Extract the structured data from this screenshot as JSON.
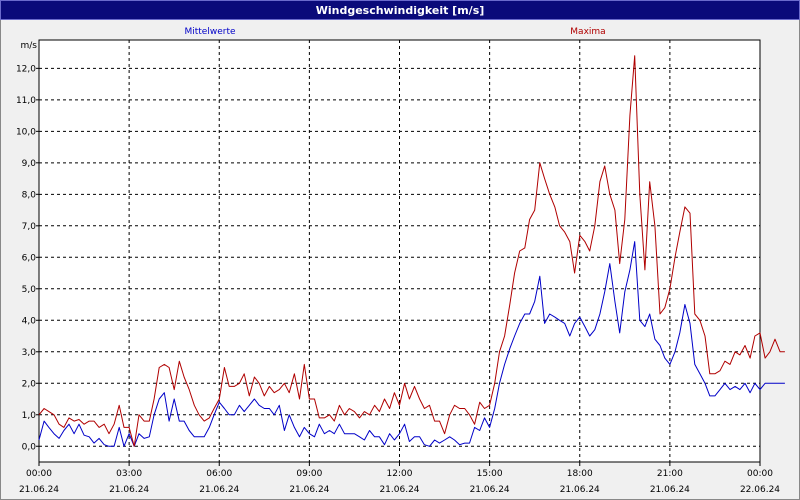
{
  "window_title": "Windgeschwindigkeit [m/s]",
  "colors": {
    "mittel": "#0000c8",
    "maxima": "#b00000",
    "grid": "#000000",
    "background": "#ffffff"
  },
  "chart_data": {
    "type": "line",
    "title": "Windgeschwindigkeit [m/s]",
    "ylabel": "m/s",
    "ylim": [
      -0.5,
      12.9
    ],
    "xlim_hours": [
      0,
      24
    ],
    "y_ticks": [
      "0,0",
      "1,0",
      "2,0",
      "3,0",
      "4,0",
      "5,0",
      "6,0",
      "7,0",
      "8,0",
      "9,0",
      "10,0",
      "11,0",
      "12,0"
    ],
    "x_ticks": [
      {
        "time": "00:00",
        "date": "21.06.24"
      },
      {
        "time": "03:00",
        "date": "21.06.24"
      },
      {
        "time": "06:00",
        "date": "21.06.24"
      },
      {
        "time": "09:00",
        "date": "21.06.24"
      },
      {
        "time": "12:00",
        "date": "21.06.24"
      },
      {
        "time": "15:00",
        "date": "21.06.24"
      },
      {
        "time": "18:00",
        "date": "21.06.24"
      },
      {
        "time": "21:00",
        "date": "21.06.24"
      },
      {
        "time": "00:00",
        "date": "22.06.24"
      }
    ],
    "series": [
      {
        "name": "Mittelwerte",
        "color": "#0000c8",
        "points": [
          [
            0.0,
            0.2
          ],
          [
            0.17,
            0.8
          ],
          [
            0.33,
            0.6
          ],
          [
            0.5,
            0.4
          ],
          [
            0.67,
            0.25
          ],
          [
            0.83,
            0.5
          ],
          [
            1.0,
            0.7
          ],
          [
            1.17,
            0.4
          ],
          [
            1.33,
            0.7
          ],
          [
            1.5,
            0.35
          ],
          [
            1.67,
            0.3
          ],
          [
            1.83,
            0.1
          ],
          [
            2.0,
            0.25
          ],
          [
            2.17,
            0.05
          ],
          [
            2.33,
            0.0
          ],
          [
            2.5,
            0.0
          ],
          [
            2.67,
            0.6
          ],
          [
            2.83,
            0.0
          ],
          [
            3.0,
            0.4
          ],
          [
            3.17,
            0.0
          ],
          [
            3.33,
            0.4
          ],
          [
            3.5,
            0.25
          ],
          [
            3.67,
            0.3
          ],
          [
            3.83,
            1.0
          ],
          [
            4.0,
            1.5
          ],
          [
            4.17,
            1.7
          ],
          [
            4.33,
            0.8
          ],
          [
            4.5,
            1.5
          ],
          [
            4.67,
            0.8
          ],
          [
            4.83,
            0.8
          ],
          [
            5.0,
            0.5
          ],
          [
            5.17,
            0.3
          ],
          [
            5.33,
            0.3
          ],
          [
            5.5,
            0.3
          ],
          [
            5.67,
            0.6
          ],
          [
            5.83,
            1.0
          ],
          [
            6.0,
            1.4
          ],
          [
            6.17,
            1.2
          ],
          [
            6.33,
            1.0
          ],
          [
            6.5,
            1.0
          ],
          [
            6.67,
            1.3
          ],
          [
            6.83,
            1.1
          ],
          [
            7.0,
            1.3
          ],
          [
            7.17,
            1.5
          ],
          [
            7.33,
            1.3
          ],
          [
            7.5,
            1.2
          ],
          [
            7.67,
            1.2
          ],
          [
            7.83,
            1.0
          ],
          [
            8.0,
            1.3
          ],
          [
            8.17,
            0.5
          ],
          [
            8.33,
            1.0
          ],
          [
            8.5,
            0.6
          ],
          [
            8.67,
            0.3
          ],
          [
            8.83,
            0.6
          ],
          [
            9.0,
            0.4
          ],
          [
            9.17,
            0.3
          ],
          [
            9.33,
            0.7
          ],
          [
            9.5,
            0.4
          ],
          [
            9.67,
            0.5
          ],
          [
            9.83,
            0.4
          ],
          [
            10.0,
            0.7
          ],
          [
            10.17,
            0.4
          ],
          [
            10.33,
            0.4
          ],
          [
            10.5,
            0.4
          ],
          [
            10.67,
            0.3
          ],
          [
            10.83,
            0.2
          ],
          [
            11.0,
            0.5
          ],
          [
            11.17,
            0.3
          ],
          [
            11.33,
            0.3
          ],
          [
            11.5,
            0.05
          ],
          [
            11.67,
            0.4
          ],
          [
            11.83,
            0.2
          ],
          [
            12.0,
            0.4
          ],
          [
            12.17,
            0.7
          ],
          [
            12.33,
            0.15
          ],
          [
            12.5,
            0.3
          ],
          [
            12.67,
            0.3
          ],
          [
            12.83,
            0.05
          ],
          [
            13.0,
            0.0
          ],
          [
            13.17,
            0.2
          ],
          [
            13.33,
            0.1
          ],
          [
            13.5,
            0.2
          ],
          [
            13.67,
            0.3
          ],
          [
            13.83,
            0.2
          ],
          [
            14.0,
            0.05
          ],
          [
            14.17,
            0.1
          ],
          [
            14.33,
            0.1
          ],
          [
            14.5,
            0.6
          ],
          [
            14.67,
            0.5
          ],
          [
            14.83,
            0.9
          ],
          [
            15.0,
            0.6
          ],
          [
            15.17,
            1.2
          ],
          [
            15.33,
            2.0
          ],
          [
            15.5,
            2.6
          ],
          [
            15.67,
            3.1
          ],
          [
            15.83,
            3.5
          ],
          [
            16.0,
            3.9
          ],
          [
            16.17,
            4.2
          ],
          [
            16.33,
            4.2
          ],
          [
            16.5,
            4.6
          ],
          [
            16.67,
            5.4
          ],
          [
            16.83,
            3.9
          ],
          [
            17.0,
            4.2
          ],
          [
            17.17,
            4.1
          ],
          [
            17.33,
            4.0
          ],
          [
            17.5,
            3.9
          ],
          [
            17.67,
            3.5
          ],
          [
            17.83,
            3.9
          ],
          [
            18.0,
            4.1
          ],
          [
            18.17,
            3.8
          ],
          [
            18.33,
            3.5
          ],
          [
            18.5,
            3.7
          ],
          [
            18.67,
            4.2
          ],
          [
            18.83,
            4.9
          ],
          [
            19.0,
            5.8
          ],
          [
            19.17,
            4.6
          ],
          [
            19.33,
            3.6
          ],
          [
            19.5,
            4.9
          ],
          [
            19.67,
            5.6
          ],
          [
            19.83,
            6.5
          ],
          [
            20.0,
            4.0
          ],
          [
            20.17,
            3.8
          ],
          [
            20.33,
            4.2
          ],
          [
            20.5,
            3.4
          ],
          [
            20.67,
            3.2
          ],
          [
            20.83,
            2.8
          ],
          [
            21.0,
            2.6
          ],
          [
            21.17,
            3.0
          ],
          [
            21.33,
            3.6
          ],
          [
            21.5,
            4.5
          ],
          [
            21.67,
            3.9
          ],
          [
            21.83,
            2.6
          ],
          [
            22.0,
            2.3
          ],
          [
            22.17,
            2.0
          ],
          [
            22.33,
            1.6
          ],
          [
            22.5,
            1.6
          ],
          [
            22.67,
            1.8
          ],
          [
            22.83,
            2.0
          ],
          [
            23.0,
            1.8
          ],
          [
            23.17,
            1.9
          ],
          [
            23.33,
            1.8
          ],
          [
            23.5,
            2.0
          ],
          [
            23.67,
            1.7
          ],
          [
            23.83,
            2.0
          ],
          [
            24.0,
            1.8
          ],
          [
            24.17,
            2.0
          ],
          [
            24.33,
            2.0
          ],
          [
            24.5,
            2.0
          ],
          [
            24.67,
            2.0
          ],
          [
            24.83,
            2.0
          ]
        ]
      },
      {
        "name": "Maxima",
        "color": "#b00000",
        "points": [
          [
            0.0,
            1.0
          ],
          [
            0.17,
            1.2
          ],
          [
            0.33,
            1.1
          ],
          [
            0.5,
            1.0
          ],
          [
            0.67,
            0.7
          ],
          [
            0.83,
            0.6
          ],
          [
            1.0,
            0.9
          ],
          [
            1.17,
            0.8
          ],
          [
            1.33,
            0.85
          ],
          [
            1.5,
            0.7
          ],
          [
            1.67,
            0.8
          ],
          [
            1.83,
            0.8
          ],
          [
            2.0,
            0.6
          ],
          [
            2.17,
            0.7
          ],
          [
            2.33,
            0.4
          ],
          [
            2.5,
            0.7
          ],
          [
            2.67,
            1.3
          ],
          [
            2.83,
            0.6
          ],
          [
            3.0,
            0.6
          ],
          [
            3.17,
            0.0
          ],
          [
            3.33,
            1.0
          ],
          [
            3.5,
            0.8
          ],
          [
            3.67,
            0.8
          ],
          [
            3.83,
            1.5
          ],
          [
            4.0,
            2.5
          ],
          [
            4.17,
            2.6
          ],
          [
            4.33,
            2.5
          ],
          [
            4.5,
            1.8
          ],
          [
            4.67,
            2.7
          ],
          [
            4.83,
            2.2
          ],
          [
            5.0,
            1.8
          ],
          [
            5.17,
            1.3
          ],
          [
            5.33,
            1.0
          ],
          [
            5.5,
            0.8
          ],
          [
            5.67,
            0.9
          ],
          [
            5.83,
            1.2
          ],
          [
            6.0,
            1.5
          ],
          [
            6.17,
            2.5
          ],
          [
            6.33,
            1.9
          ],
          [
            6.5,
            1.9
          ],
          [
            6.67,
            2.0
          ],
          [
            6.83,
            2.3
          ],
          [
            7.0,
            1.6
          ],
          [
            7.17,
            2.2
          ],
          [
            7.33,
            2.0
          ],
          [
            7.5,
            1.6
          ],
          [
            7.67,
            1.9
          ],
          [
            7.83,
            1.7
          ],
          [
            8.0,
            1.8
          ],
          [
            8.17,
            2.0
          ],
          [
            8.33,
            1.7
          ],
          [
            8.5,
            2.3
          ],
          [
            8.67,
            1.5
          ],
          [
            8.83,
            2.6
          ],
          [
            9.0,
            1.5
          ],
          [
            9.17,
            1.5
          ],
          [
            9.33,
            0.9
          ],
          [
            9.5,
            0.9
          ],
          [
            9.67,
            1.0
          ],
          [
            9.83,
            0.8
          ],
          [
            10.0,
            1.3
          ],
          [
            10.17,
            1.0
          ],
          [
            10.33,
            1.2
          ],
          [
            10.5,
            1.1
          ],
          [
            10.67,
            0.9
          ],
          [
            10.83,
            1.1
          ],
          [
            11.0,
            1.0
          ],
          [
            11.17,
            1.3
          ],
          [
            11.33,
            1.1
          ],
          [
            11.5,
            1.5
          ],
          [
            11.67,
            1.2
          ],
          [
            11.83,
            1.7
          ],
          [
            12.0,
            1.3
          ],
          [
            12.17,
            2.0
          ],
          [
            12.33,
            1.5
          ],
          [
            12.5,
            1.9
          ],
          [
            12.67,
            1.5
          ],
          [
            12.83,
            1.2
          ],
          [
            13.0,
            1.3
          ],
          [
            13.17,
            0.8
          ],
          [
            13.33,
            0.8
          ],
          [
            13.5,
            0.4
          ],
          [
            13.67,
            1.0
          ],
          [
            13.83,
            1.3
          ],
          [
            14.0,
            1.2
          ],
          [
            14.17,
            1.2
          ],
          [
            14.33,
            1.0
          ],
          [
            14.5,
            0.7
          ],
          [
            14.67,
            1.4
          ],
          [
            14.83,
            1.2
          ],
          [
            15.0,
            1.3
          ],
          [
            15.17,
            2.0
          ],
          [
            15.33,
            3.0
          ],
          [
            15.5,
            3.5
          ],
          [
            15.67,
            4.5
          ],
          [
            15.83,
            5.5
          ],
          [
            16.0,
            6.2
          ],
          [
            16.17,
            6.3
          ],
          [
            16.33,
            7.2
          ],
          [
            16.5,
            7.5
          ],
          [
            16.67,
            9.0
          ],
          [
            16.83,
            8.5
          ],
          [
            17.0,
            8.0
          ],
          [
            17.17,
            7.6
          ],
          [
            17.33,
            7.0
          ],
          [
            17.5,
            6.8
          ],
          [
            17.67,
            6.5
          ],
          [
            17.83,
            5.5
          ],
          [
            18.0,
            6.7
          ],
          [
            18.17,
            6.5
          ],
          [
            18.33,
            6.2
          ],
          [
            18.5,
            7.0
          ],
          [
            18.67,
            8.4
          ],
          [
            18.83,
            8.9
          ],
          [
            19.0,
            8.0
          ],
          [
            19.17,
            7.5
          ],
          [
            19.33,
            5.8
          ],
          [
            19.5,
            7.2
          ],
          [
            19.67,
            10.5
          ],
          [
            19.83,
            12.4
          ],
          [
            20.0,
            8.0
          ],
          [
            20.17,
            5.6
          ],
          [
            20.33,
            8.4
          ],
          [
            20.5,
            7.0
          ],
          [
            20.67,
            4.2
          ],
          [
            20.83,
            4.4
          ],
          [
            21.0,
            5.0
          ],
          [
            21.17,
            6.0
          ],
          [
            21.33,
            6.8
          ],
          [
            21.5,
            7.6
          ],
          [
            21.67,
            7.4
          ],
          [
            21.83,
            4.2
          ],
          [
            22.0,
            4.0
          ],
          [
            22.17,
            3.5
          ],
          [
            22.33,
            2.3
          ],
          [
            22.5,
            2.3
          ],
          [
            22.67,
            2.4
          ],
          [
            22.83,
            2.7
          ],
          [
            23.0,
            2.6
          ],
          [
            23.17,
            3.0
          ],
          [
            23.33,
            2.9
          ],
          [
            23.5,
            3.2
          ],
          [
            23.67,
            2.8
          ],
          [
            23.83,
            3.5
          ],
          [
            24.0,
            3.6
          ],
          [
            24.17,
            2.8
          ],
          [
            24.33,
            3.0
          ],
          [
            24.5,
            3.4
          ],
          [
            24.67,
            3.0
          ],
          [
            24.83,
            3.0
          ]
        ]
      }
    ]
  }
}
